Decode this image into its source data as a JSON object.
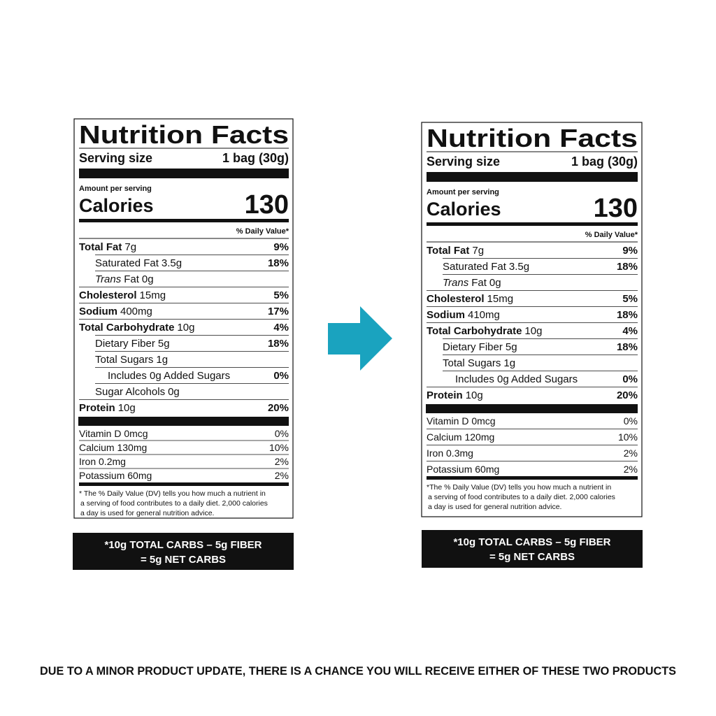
{
  "labels": [
    {
      "title": "Nutrition Facts",
      "serving_size_label": "Serving size",
      "serving_size": "1 bag (30g)",
      "amount_per_serving": "Amount per serving",
      "calories_label": "Calories",
      "calories": "130",
      "dv_header": "% Daily Value*",
      "nutrients": [
        {
          "name": "Total Fat",
          "amount": "7g",
          "dv": "9%",
          "level": "main"
        },
        {
          "name": "Saturated Fat",
          "amount": "3.5g",
          "dv": "18%",
          "level": "sub"
        },
        {
          "italic_prefix": "Trans",
          "name": "Fat",
          "amount": "0g",
          "level": "sub"
        },
        {
          "name": "Cholesterol",
          "amount": "15mg",
          "dv": "5%",
          "level": "main"
        },
        {
          "name": "Sodium",
          "amount": "400mg",
          "dv": "17%",
          "level": "main"
        },
        {
          "name": "Total Carbohydrate",
          "amount": "10g",
          "dv": "4%",
          "level": "main"
        },
        {
          "name": "Dietary Fiber",
          "amount": "5g",
          "dv": "18%",
          "level": "sub"
        },
        {
          "name": "Total Sugars",
          "amount": "1g",
          "level": "sub"
        },
        {
          "name": "Includes 0g Added Sugars",
          "dv": "0%",
          "level": "subsub"
        },
        {
          "name": "Sugar Alcohols",
          "amount": "0g",
          "level": "sub"
        },
        {
          "name": "Protein",
          "amount": "10g",
          "dv": "20%",
          "level": "main"
        }
      ],
      "vitamins": [
        {
          "name": "Vitamin D 0mcg",
          "dv": "0%"
        },
        {
          "name": "Calcium 130mg",
          "dv": "10%"
        },
        {
          "name": "Iron 0.2mg",
          "dv": "2%"
        },
        {
          "name": "Potassium 60mg",
          "dv": "2%"
        }
      ],
      "footnote": [
        "* The % Daily Value (DV) tells you how much a nutrient in",
        "a serving of food contributes to a daily diet. 2,000 calories",
        "a day is used for general nutrition advice."
      ],
      "net_carbs": [
        "*10g TOTAL CARBS – 5g FIBER",
        "= 5g NET CARBS"
      ]
    },
    {
      "title": "Nutrition Facts",
      "serving_size_label": "Serving size",
      "serving_size": "1 bag (30g)",
      "amount_per_serving": "Amount per serving",
      "calories_label": "Calories",
      "calories": "130",
      "dv_header": "% Daily Value*",
      "nutrients": [
        {
          "name": "Total Fat",
          "amount": "7g",
          "dv": "9%",
          "level": "main"
        },
        {
          "name": "Saturated Fat",
          "amount": "3.5g",
          "dv": "18%",
          "level": "sub"
        },
        {
          "italic_prefix": "Trans",
          "name": "Fat",
          "amount": "0g",
          "level": "sub"
        },
        {
          "name": "Cholesterol",
          "amount": "15mg",
          "dv": "5%",
          "level": "main"
        },
        {
          "name": "Sodium",
          "amount": "410mg",
          "dv": "18%",
          "level": "main"
        },
        {
          "name": "Total Carbohydrate",
          "amount": "10g",
          "dv": "4%",
          "level": "main"
        },
        {
          "name": "Dietary Fiber",
          "amount": "5g",
          "dv": "18%",
          "level": "sub"
        },
        {
          "name": "Total Sugars",
          "amount": "1g",
          "level": "sub"
        },
        {
          "name": "Includes 0g Added Sugars",
          "dv": "0%",
          "level": "subsub"
        },
        {
          "name": "Protein",
          "amount": "10g",
          "dv": "20%",
          "level": "main"
        }
      ],
      "vitamins": [
        {
          "name": "Vitamin D 0mcg",
          "dv": "0%"
        },
        {
          "name": "Calcium 120mg",
          "dv": "10%"
        },
        {
          "name": "Iron 0.3mg",
          "dv": "2%"
        },
        {
          "name": "Potassium 60mg",
          "dv": "2%"
        }
      ],
      "footnote": [
        "*The % Daily Value (DV) tells you how much a nutrient in",
        "a serving of food contributes to a daily diet. 2,000 calories",
        "a day is used for general nutrition advice."
      ],
      "net_carbs": [
        "*10g TOTAL CARBS – 5g FIBER",
        "= 5g NET CARBS"
      ]
    }
  ],
  "notice": "DUE TO A MINOR PRODUCT UPDATE, THERE IS A CHANCE YOU WILL RECEIVE EITHER OF THESE TWO PRODUCTS"
}
